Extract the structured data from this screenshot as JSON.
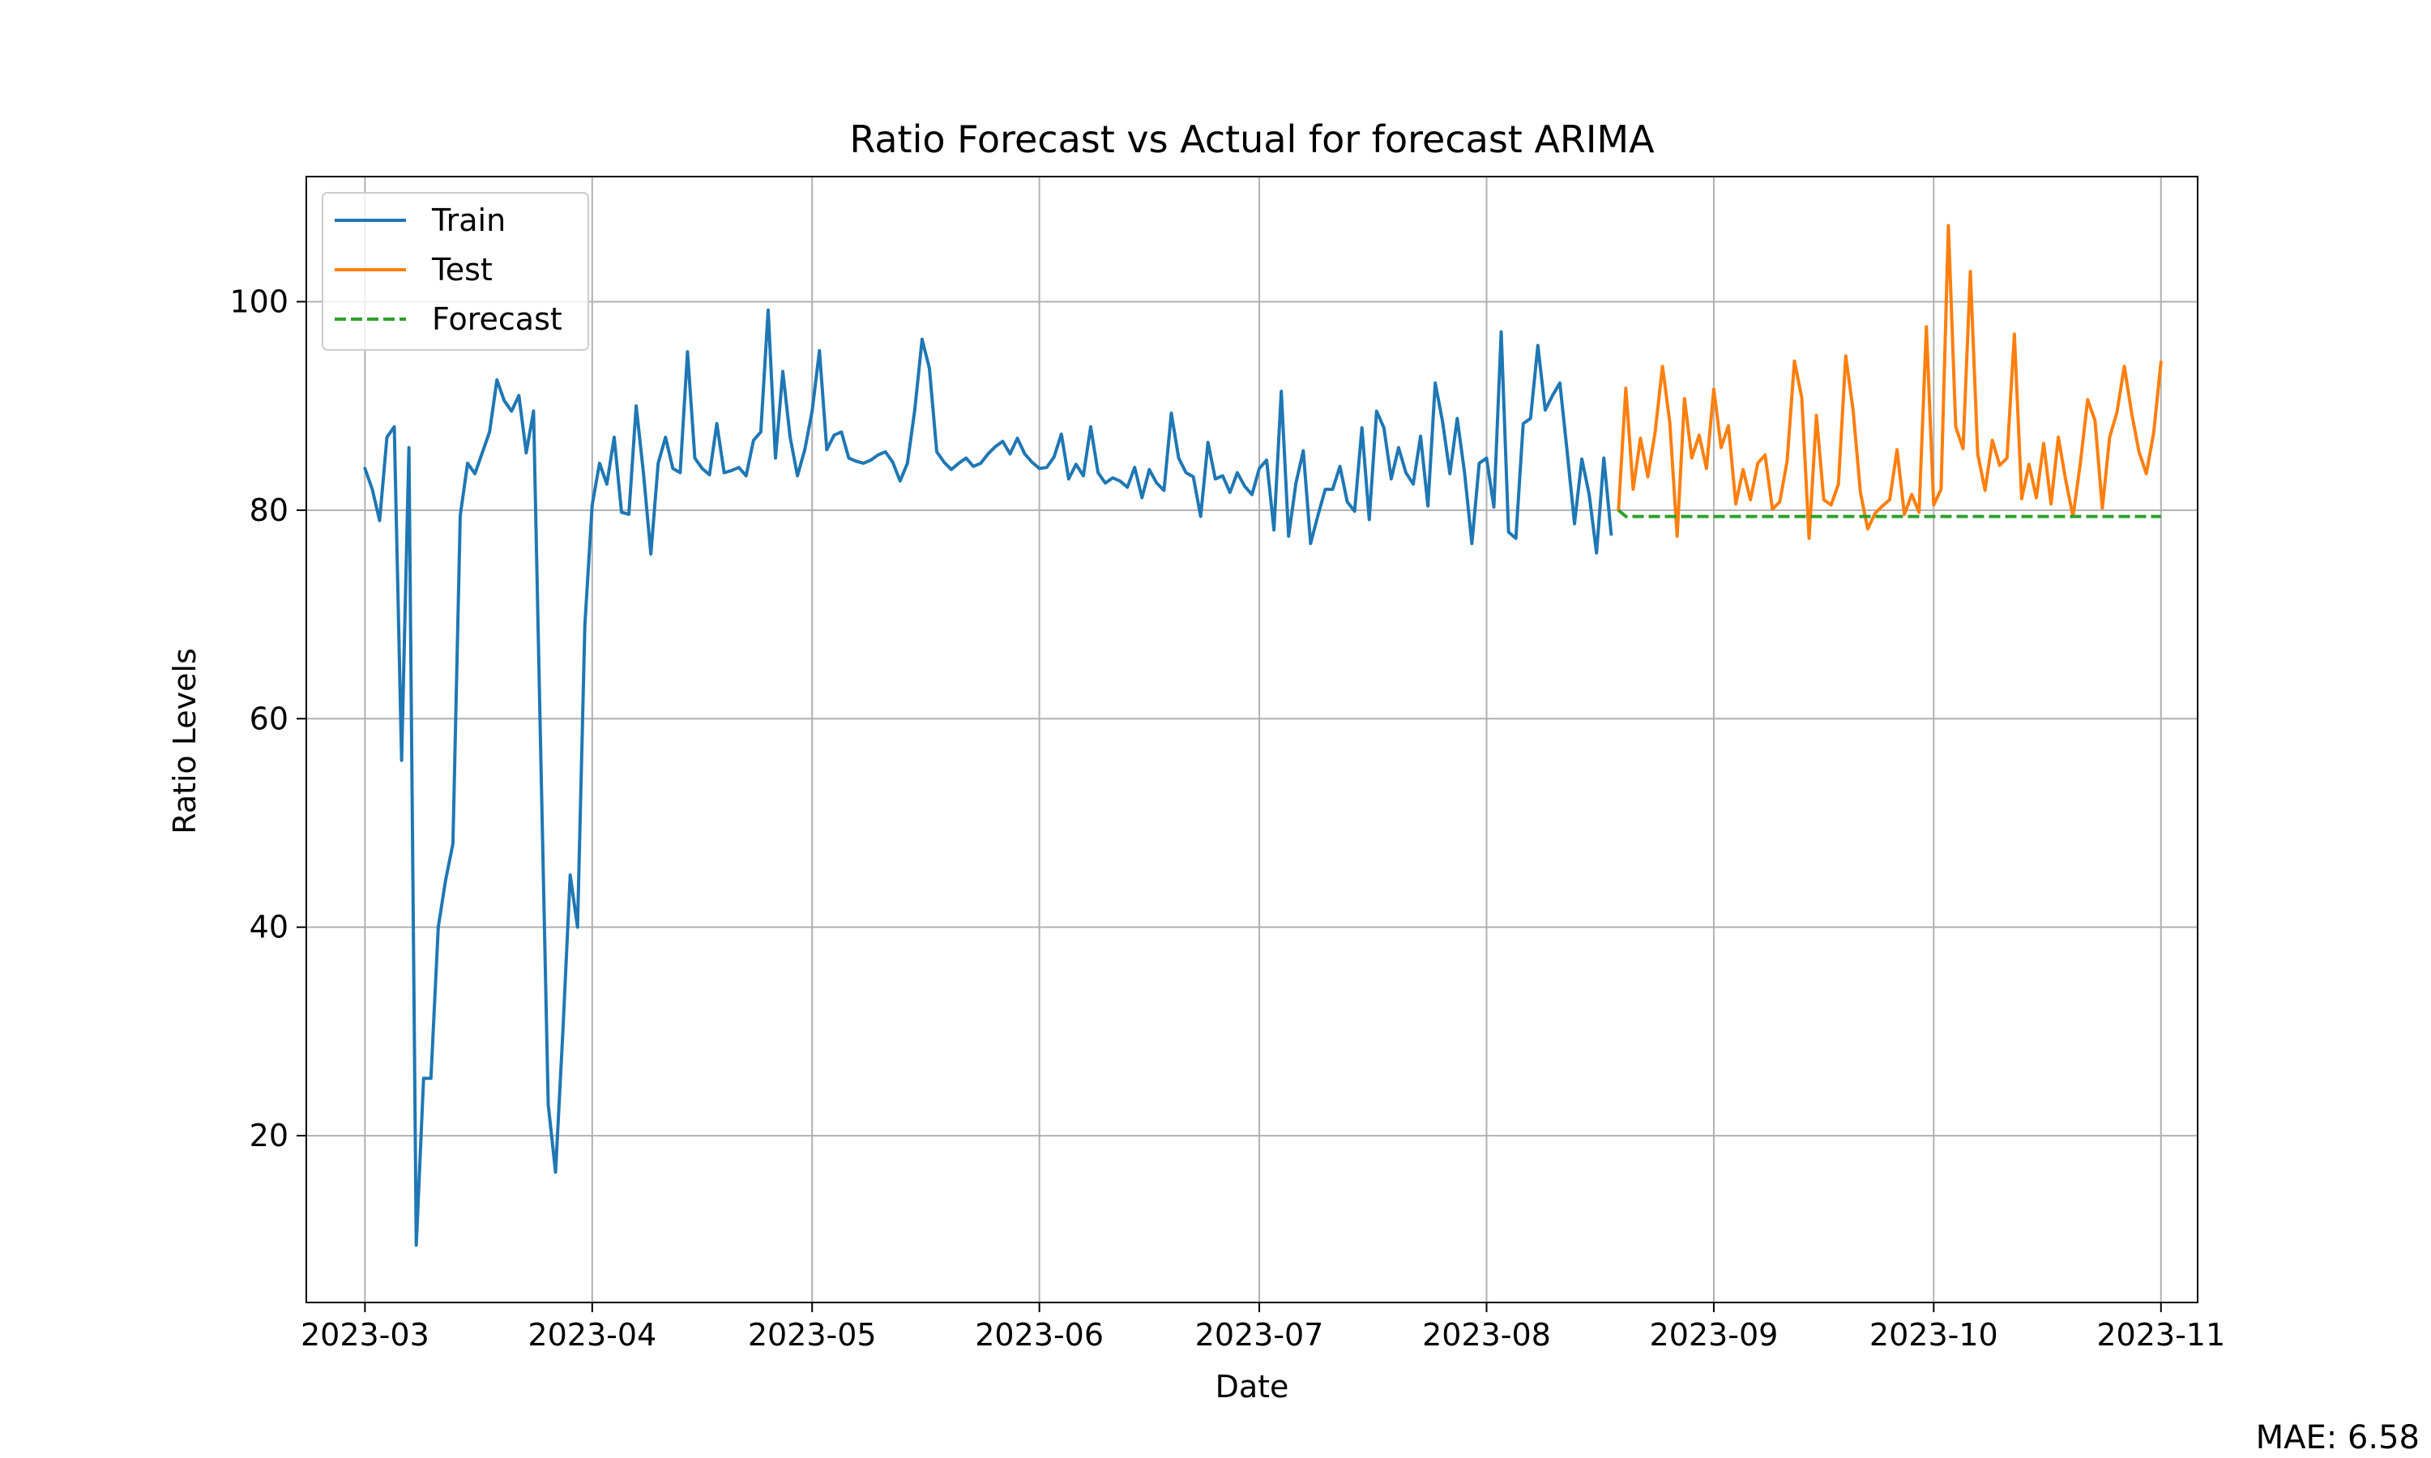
{
  "chart_data": {
    "type": "line",
    "title": "Ratio Forecast vs Actual for forecast ARIMA",
    "xlabel": "Date",
    "ylabel": "Ratio Levels",
    "xlim": [
      "2023-02-21",
      "2023-11-06"
    ],
    "ylim": [
      4,
      112
    ],
    "grid": true,
    "legend_placement": "top-left",
    "x_ticks": [
      "2023-03-01",
      "2023-04-01",
      "2023-05-01",
      "2023-06-01",
      "2023-07-01",
      "2023-08-01",
      "2023-09-01",
      "2023-10-01",
      "2023-11-01"
    ],
    "x_tick_labels": [
      "2023-03",
      "2023-04",
      "2023-05",
      "2023-06",
      "2023-07",
      "2023-08",
      "2023-09",
      "2023-10",
      "2023-11"
    ],
    "y_ticks": [
      20,
      40,
      60,
      80,
      100
    ],
    "y_tick_labels": [
      "20",
      "40",
      "60",
      "80",
      "100"
    ],
    "series": [
      {
        "name": "Train",
        "color": "#1f77b4",
        "style": "solid",
        "points": [
          [
            "2023-03-01",
            84
          ],
          [
            "2023-03-02",
            82
          ],
          [
            "2023-03-03",
            79
          ],
          [
            "2023-03-04",
            87
          ],
          [
            "2023-03-05",
            88
          ],
          [
            "2023-03-06",
            56
          ],
          [
            "2023-03-07",
            86
          ],
          [
            "2023-03-08",
            9.5
          ],
          [
            "2023-03-09",
            25.5
          ],
          [
            "2023-03-10",
            25.5
          ],
          [
            "2023-03-11",
            40
          ],
          [
            "2023-03-12",
            44.5
          ],
          [
            "2023-03-13",
            48
          ],
          [
            "2023-03-14",
            79.5
          ],
          [
            "2023-03-15",
            84.5
          ],
          [
            "2023-03-16",
            83.5
          ],
          [
            "2023-03-17",
            85.5
          ],
          [
            "2023-03-18",
            87.5
          ],
          [
            "2023-03-19",
            92.5
          ],
          [
            "2023-03-20",
            90.5
          ],
          [
            "2023-03-21",
            89.5
          ],
          [
            "2023-03-22",
            91
          ],
          [
            "2023-03-23",
            85.5
          ],
          [
            "2023-03-24",
            89.5
          ],
          [
            "2023-03-25",
            56
          ],
          [
            "2023-03-26",
            23
          ],
          [
            "2023-03-27",
            16.5
          ],
          [
            "2023-03-28",
            30
          ],
          [
            "2023-03-29",
            45
          ],
          [
            "2023-03-30",
            40
          ],
          [
            "2023-03-31",
            69
          ],
          [
            "2023-04-01",
            80.5
          ],
          [
            "2023-04-02",
            84.5
          ],
          [
            "2023-04-03",
            82.5
          ],
          [
            "2023-04-04",
            87
          ],
          [
            "2023-04-05",
            79.8
          ],
          [
            "2023-04-06",
            79.6
          ],
          [
            "2023-04-07",
            90
          ],
          [
            "2023-04-08",
            83.5
          ],
          [
            "2023-04-09",
            75.8
          ],
          [
            "2023-04-10",
            84.5
          ],
          [
            "2023-04-11",
            87
          ],
          [
            "2023-04-12",
            84
          ],
          [
            "2023-04-13",
            83.6
          ],
          [
            "2023-04-14",
            95.2
          ],
          [
            "2023-04-15",
            85
          ],
          [
            "2023-04-16",
            84
          ],
          [
            "2023-04-17",
            83.4
          ],
          [
            "2023-04-18",
            88.3
          ],
          [
            "2023-04-19",
            83.6
          ],
          [
            "2023-04-20",
            83.8
          ],
          [
            "2023-04-21",
            84.1
          ],
          [
            "2023-04-22",
            83.3
          ],
          [
            "2023-04-23",
            86.7
          ],
          [
            "2023-04-24",
            87.5
          ],
          [
            "2023-04-25",
            99.2
          ],
          [
            "2023-04-26",
            85
          ],
          [
            "2023-04-27",
            93.3
          ],
          [
            "2023-04-28",
            87
          ],
          [
            "2023-04-29",
            83.3
          ],
          [
            "2023-04-30",
            85.8
          ],
          [
            "2023-05-01",
            89.5
          ],
          [
            "2023-05-02",
            95.3
          ],
          [
            "2023-05-03",
            85.8
          ],
          [
            "2023-05-04",
            87.2
          ],
          [
            "2023-05-05",
            87.5
          ],
          [
            "2023-05-06",
            85
          ],
          [
            "2023-05-07",
            84.7
          ],
          [
            "2023-05-08",
            84.5
          ],
          [
            "2023-05-09",
            84.8
          ],
          [
            "2023-05-10",
            85.3
          ],
          [
            "2023-05-11",
            85.6
          ],
          [
            "2023-05-12",
            84.6
          ],
          [
            "2023-05-13",
            82.8
          ],
          [
            "2023-05-14",
            84.5
          ],
          [
            "2023-05-15",
            89.6
          ],
          [
            "2023-05-16",
            96.4
          ],
          [
            "2023-05-17",
            93.6
          ],
          [
            "2023-05-18",
            85.6
          ],
          [
            "2023-05-19",
            84.6
          ],
          [
            "2023-05-20",
            83.9
          ],
          [
            "2023-05-21",
            84.5
          ],
          [
            "2023-05-22",
            85
          ],
          [
            "2023-05-23",
            84.2
          ],
          [
            "2023-05-24",
            84.5
          ],
          [
            "2023-05-25",
            85.4
          ],
          [
            "2023-05-26",
            86.1
          ],
          [
            "2023-05-27",
            86.6
          ],
          [
            "2023-05-28",
            85.4
          ],
          [
            "2023-05-29",
            86.9
          ],
          [
            "2023-05-30",
            85.4
          ],
          [
            "2023-05-31",
            84.6
          ],
          [
            "2023-06-01",
            84
          ],
          [
            "2023-06-02",
            84.1
          ],
          [
            "2023-06-03",
            85.1
          ],
          [
            "2023-06-04",
            87.3
          ],
          [
            "2023-06-05",
            83
          ],
          [
            "2023-06-06",
            84.4
          ],
          [
            "2023-06-07",
            83.3
          ],
          [
            "2023-06-08",
            88
          ],
          [
            "2023-06-09",
            83.6
          ],
          [
            "2023-06-10",
            82.6
          ],
          [
            "2023-06-11",
            83.1
          ],
          [
            "2023-06-12",
            82.8
          ],
          [
            "2023-06-13",
            82.2
          ],
          [
            "2023-06-14",
            84.1
          ],
          [
            "2023-06-15",
            81.2
          ],
          [
            "2023-06-16",
            83.9
          ],
          [
            "2023-06-17",
            82.6
          ],
          [
            "2023-06-18",
            81.9
          ],
          [
            "2023-06-19",
            89.3
          ],
          [
            "2023-06-20",
            85
          ],
          [
            "2023-06-21",
            83.6
          ],
          [
            "2023-06-22",
            83.2
          ],
          [
            "2023-06-23",
            79.4
          ],
          [
            "2023-06-24",
            86.5
          ],
          [
            "2023-06-25",
            83
          ],
          [
            "2023-06-26",
            83.3
          ],
          [
            "2023-06-27",
            81.7
          ],
          [
            "2023-06-28",
            83.6
          ],
          [
            "2023-06-29",
            82.3
          ],
          [
            "2023-06-30",
            81.5
          ],
          [
            "2023-07-01",
            84
          ],
          [
            "2023-07-02",
            84.8
          ],
          [
            "2023-07-03",
            78.1
          ],
          [
            "2023-07-04",
            91.4
          ],
          [
            "2023-07-05",
            77.5
          ],
          [
            "2023-07-06",
            82.6
          ],
          [
            "2023-07-07",
            85.7
          ],
          [
            "2023-07-08",
            76.8
          ],
          [
            "2023-07-09",
            79.5
          ],
          [
            "2023-07-10",
            82
          ],
          [
            "2023-07-11",
            82
          ],
          [
            "2023-07-12",
            84.2
          ],
          [
            "2023-07-13",
            80.8
          ],
          [
            "2023-07-14",
            79.9
          ],
          [
            "2023-07-15",
            87.9
          ],
          [
            "2023-07-16",
            79.1
          ],
          [
            "2023-07-17",
            89.5
          ],
          [
            "2023-07-18",
            87.9
          ],
          [
            "2023-07-19",
            83
          ],
          [
            "2023-07-20",
            86
          ],
          [
            "2023-07-21",
            83.6
          ],
          [
            "2023-07-22",
            82.5
          ],
          [
            "2023-07-23",
            87.1
          ],
          [
            "2023-07-24",
            80.4
          ],
          [
            "2023-07-25",
            92.2
          ],
          [
            "2023-07-26",
            88.5
          ],
          [
            "2023-07-27",
            83.5
          ],
          [
            "2023-07-28",
            88.8
          ],
          [
            "2023-07-29",
            83.6
          ],
          [
            "2023-07-30",
            76.8
          ],
          [
            "2023-07-31",
            84.5
          ],
          [
            "2023-08-01",
            85
          ],
          [
            "2023-08-02",
            80.3
          ],
          [
            "2023-08-03",
            97.1
          ],
          [
            "2023-08-04",
            77.9
          ],
          [
            "2023-08-05",
            77.3
          ],
          [
            "2023-08-06",
            88.3
          ],
          [
            "2023-08-07",
            88.8
          ],
          [
            "2023-08-08",
            95.8
          ],
          [
            "2023-08-09",
            89.6
          ],
          [
            "2023-08-10",
            91
          ],
          [
            "2023-08-11",
            92.2
          ],
          [
            "2023-08-12",
            85.6
          ],
          [
            "2023-08-13",
            78.7
          ],
          [
            "2023-08-14",
            84.9
          ],
          [
            "2023-08-15",
            81.5
          ],
          [
            "2023-08-16",
            75.9
          ],
          [
            "2023-08-17",
            85
          ],
          [
            "2023-08-18",
            77.7
          ]
        ]
      },
      {
        "name": "Test",
        "color": "#ff7f0e",
        "style": "solid",
        "points": [
          [
            "2023-08-19",
            80
          ],
          [
            "2023-08-20",
            91.7
          ],
          [
            "2023-08-21",
            82
          ],
          [
            "2023-08-22",
            86.9
          ],
          [
            "2023-08-23",
            83.2
          ],
          [
            "2023-08-24",
            87.5
          ],
          [
            "2023-08-25",
            93.8
          ],
          [
            "2023-08-26",
            88.4
          ],
          [
            "2023-08-27",
            77.5
          ],
          [
            "2023-08-28",
            90.7
          ],
          [
            "2023-08-29",
            85
          ],
          [
            "2023-08-30",
            87.2
          ],
          [
            "2023-08-31",
            84
          ],
          [
            "2023-09-01",
            91.6
          ],
          [
            "2023-09-02",
            86
          ],
          [
            "2023-09-03",
            88.1
          ],
          [
            "2023-09-04",
            80.6
          ],
          [
            "2023-09-05",
            83.9
          ],
          [
            "2023-09-06",
            81
          ],
          [
            "2023-09-07",
            84.5
          ],
          [
            "2023-09-08",
            85.3
          ],
          [
            "2023-09-09",
            80.1
          ],
          [
            "2023-09-10",
            80.8
          ],
          [
            "2023-09-11",
            84.7
          ],
          [
            "2023-09-12",
            94.3
          ],
          [
            "2023-09-13",
            90.8
          ],
          [
            "2023-09-14",
            77.3
          ],
          [
            "2023-09-15",
            89.1
          ],
          [
            "2023-09-16",
            81
          ],
          [
            "2023-09-17",
            80.5
          ],
          [
            "2023-09-18",
            82.5
          ],
          [
            "2023-09-19",
            94.8
          ],
          [
            "2023-09-20",
            89.6
          ],
          [
            "2023-09-21",
            81.7
          ],
          [
            "2023-09-22",
            78.2
          ],
          [
            "2023-09-23",
            79.7
          ],
          [
            "2023-09-24",
            80.4
          ],
          [
            "2023-09-25",
            81
          ],
          [
            "2023-09-26",
            85.8
          ],
          [
            "2023-09-27",
            79.6
          ],
          [
            "2023-09-28",
            81.5
          ],
          [
            "2023-09-29",
            79.8
          ],
          [
            "2023-09-30",
            97.6
          ],
          [
            "2023-10-01",
            80.5
          ],
          [
            "2023-10-02",
            82
          ],
          [
            "2023-10-03",
            107.3
          ],
          [
            "2023-10-04",
            88
          ],
          [
            "2023-10-05",
            85.9
          ],
          [
            "2023-10-06",
            102.9
          ],
          [
            "2023-10-07",
            85.4
          ],
          [
            "2023-10-08",
            81.9
          ],
          [
            "2023-10-09",
            86.7
          ],
          [
            "2023-10-10",
            84.3
          ],
          [
            "2023-10-11",
            85
          ],
          [
            "2023-10-12",
            96.9
          ],
          [
            "2023-10-13",
            81.1
          ],
          [
            "2023-10-14",
            84.4
          ],
          [
            "2023-10-15",
            81.2
          ],
          [
            "2023-10-16",
            86.4
          ],
          [
            "2023-10-17",
            80.6
          ],
          [
            "2023-10-18",
            87
          ],
          [
            "2023-10-19",
            82.9
          ],
          [
            "2023-10-20",
            79.4
          ],
          [
            "2023-10-21",
            84.5
          ],
          [
            "2023-10-22",
            90.6
          ],
          [
            "2023-10-23",
            88.6
          ],
          [
            "2023-10-24",
            80.2
          ],
          [
            "2023-10-25",
            87
          ],
          [
            "2023-10-26",
            89.4
          ],
          [
            "2023-10-27",
            93.8
          ],
          [
            "2023-10-28",
            89.3
          ],
          [
            "2023-10-29",
            85.6
          ],
          [
            "2023-10-30",
            83.5
          ],
          [
            "2023-10-31",
            87.4
          ],
          [
            "2023-11-01",
            94.2
          ]
        ]
      },
      {
        "name": "Forecast",
        "color": "#2ca02c",
        "style": "dashed",
        "points": [
          [
            "2023-08-19",
            80
          ],
          [
            "2023-08-20",
            79.4
          ],
          [
            "2023-08-21",
            79.4
          ],
          [
            "2023-11-01",
            79.4
          ]
        ]
      }
    ],
    "annotation": "MAE: 6.58"
  }
}
